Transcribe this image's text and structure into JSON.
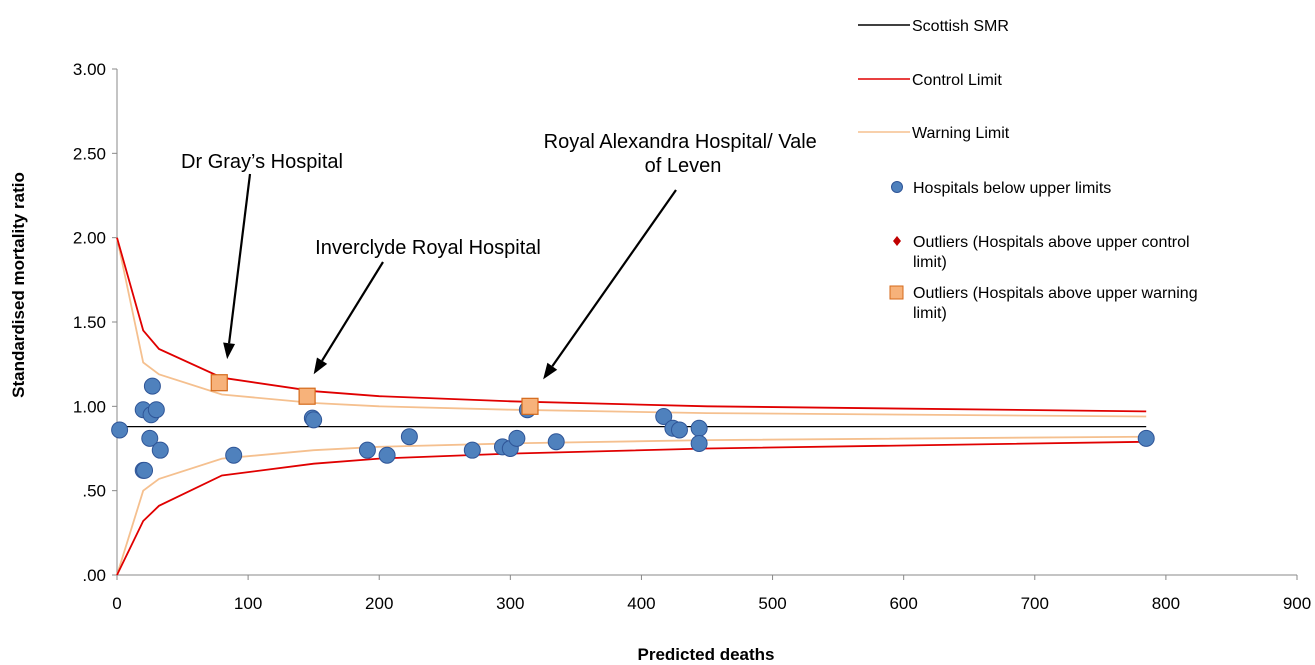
{
  "colors": {
    "scottish_smr": "#000000",
    "control_limit": "#e00000",
    "warning_limit": "#f5c08f",
    "hospital_fill": "#4f81bd",
    "hospital_stroke": "#2f5597",
    "outlier_control": "#c00000",
    "outlier_warning_fill": "#f7b27a",
    "outlier_warning_stroke": "#d46a1b"
  },
  "chart_data": {
    "type": "scatter",
    "xlabel": "Predicted deaths",
    "ylabel": "Standardised mortality ratio",
    "xlim": [
      0,
      900
    ],
    "ylim": [
      0,
      3
    ],
    "x_ticks": [
      0,
      100,
      200,
      300,
      400,
      500,
      600,
      700,
      800,
      900
    ],
    "x_tick_labels": [
      "0",
      "100",
      "200",
      "300",
      "400",
      "500",
      "600",
      "700",
      "800",
      "900"
    ],
    "y_ticks": [
      0,
      0.5,
      1,
      1.5,
      2,
      2.5,
      3
    ],
    "y_tick_labels": [
      ".00",
      ".50",
      "1.00",
      "1.50",
      "2.00",
      "2.50",
      "3.00"
    ],
    "grid": false,
    "legend_position": "top-right",
    "legend": [
      {
        "label": "Scottish SMR",
        "kind": "line",
        "color": "#000000"
      },
      {
        "label": "Control Limit",
        "kind": "line",
        "color": "#e00000"
      },
      {
        "label": "Warning Limit",
        "kind": "line",
        "color": "#f5c08f"
      },
      {
        "label": "Hospitals below upper limits",
        "kind": "circle",
        "color": "#4f81bd"
      },
      {
        "label_lines": [
          "Outliers (Hospitals above upper control",
          "limit)"
        ],
        "kind": "diamond",
        "color": "#c00000"
      },
      {
        "label_lines": [
          "Outliers (Hospitals above upper warning",
          "limit)"
        ],
        "kind": "square",
        "color": "#f7b27a"
      }
    ],
    "series": [
      {
        "name": "Scottish SMR",
        "type": "line",
        "x": [
          0,
          785
        ],
        "y": [
          0.88,
          0.88
        ]
      },
      {
        "name": "Control Limit",
        "type": "line",
        "x": [
          0,
          20,
          32,
          80,
          150,
          200,
          300,
          450,
          785
        ],
        "y_upper": [
          2.0,
          1.45,
          1.34,
          1.17,
          1.09,
          1.06,
          1.03,
          1.0,
          0.97
        ],
        "y_lower": [
          0.0,
          0.32,
          0.41,
          0.59,
          0.66,
          0.69,
          0.72,
          0.75,
          0.79
        ]
      },
      {
        "name": "Warning Limit",
        "type": "line",
        "x": [
          0,
          20,
          32,
          80,
          150,
          200,
          300,
          450,
          785
        ],
        "y_upper": [
          2.0,
          1.26,
          1.19,
          1.07,
          1.02,
          1.0,
          0.98,
          0.96,
          0.94
        ],
        "y_lower": [
          0.0,
          0.5,
          0.57,
          0.69,
          0.74,
          0.76,
          0.78,
          0.8,
          0.82
        ]
      },
      {
        "name": "Hospitals below upper limits",
        "type": "scatter",
        "points": [
          [
            2,
            0.86
          ],
          [
            20,
            0.98
          ],
          [
            20,
            0.62
          ],
          [
            21,
            0.62
          ],
          [
            25,
            0.81
          ],
          [
            26,
            0.95
          ],
          [
            27,
            1.12
          ],
          [
            30,
            0.98
          ],
          [
            33,
            0.74
          ],
          [
            89,
            0.71
          ],
          [
            149,
            0.93
          ],
          [
            150,
            0.92
          ],
          [
            191,
            0.74
          ],
          [
            206,
            0.71
          ],
          [
            223,
            0.82
          ],
          [
            271,
            0.74
          ],
          [
            294,
            0.76
          ],
          [
            300,
            0.75
          ],
          [
            305,
            0.81
          ],
          [
            313,
            0.98
          ],
          [
            335,
            0.79
          ],
          [
            417,
            0.94
          ],
          [
            424,
            0.87
          ],
          [
            429,
            0.86
          ],
          [
            444,
            0.87
          ],
          [
            444,
            0.78
          ],
          [
            785,
            0.81
          ]
        ]
      },
      {
        "name": "Outliers (Hospitals above upper warning limit)",
        "type": "scatter",
        "points": [
          [
            78,
            1.14
          ],
          [
            145,
            1.06
          ],
          [
            315,
            1.0
          ]
        ]
      }
    ],
    "annotations": [
      {
        "lines": [
          "Dr Gray’s Hospital"
        ],
        "target": [
          84,
          1.28
        ]
      },
      {
        "lines": [
          "Inverclyde Royal Hospital"
        ],
        "target": [
          150,
          1.19
        ]
      },
      {
        "lines": [
          "Royal Alexandra Hospital/ Vale",
          "of Leven"
        ],
        "target": [
          325,
          1.16
        ]
      }
    ]
  }
}
